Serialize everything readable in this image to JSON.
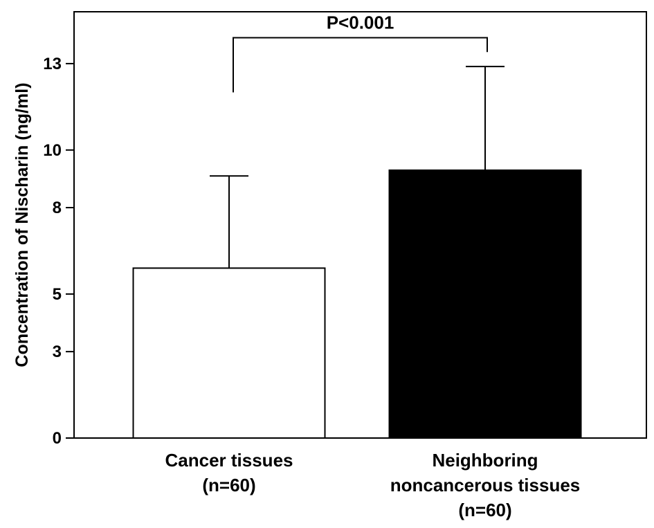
{
  "chart_data": {
    "type": "bar",
    "ylabel": "Concentration of Nischarin (ng/ml)",
    "ylim": [
      0,
      14.8
    ],
    "yticks": [
      0,
      3,
      5,
      8,
      10,
      13
    ],
    "yticks_labeled": true,
    "grid": false,
    "categories": [
      {
        "lines": [
          "Cancer tissues",
          "(n=60)"
        ]
      },
      {
        "lines": [
          "Neighboring",
          "noncancerous tissues",
          "(n=60)"
        ]
      }
    ],
    "series": [
      {
        "values": [
          5.9,
          9.3
        ],
        "errors": [
          3.2,
          3.6
        ],
        "fills": [
          "#ffffff",
          "#000000"
        ]
      }
    ],
    "annotations": [
      {
        "text": "P<0.001",
        "between": [
          0,
          1
        ],
        "bracket_y": 13.9,
        "left_drop_to": 12.0,
        "right_drop_to": 13.4
      }
    ]
  }
}
